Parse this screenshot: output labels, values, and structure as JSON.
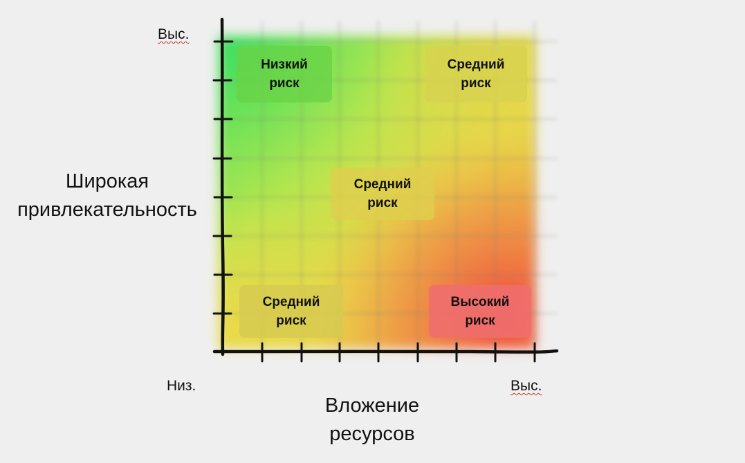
{
  "axes": {
    "y_high": "Выс.",
    "x_low": "Низ.",
    "x_high": "Выс.",
    "y_title_line1": "Широкая",
    "y_title_line2": "привлекательность",
    "x_title_line1": "Вложение",
    "x_title_line2": "ресурсов"
  },
  "quadrants": {
    "top_left": {
      "line1": "Низкий",
      "line2": "риск"
    },
    "top_right": {
      "line1": "Средний",
      "line2": "риск"
    },
    "center": {
      "line1": "Средний",
      "line2": "риск"
    },
    "bottom_left": {
      "line1": "Средний",
      "line2": "риск"
    },
    "bottom_right": {
      "line1": "Высокий",
      "line2": "риск"
    }
  },
  "colors": {
    "low_risk": "#5ee05a",
    "medium_risk": "#d9dc4a",
    "high_risk": "#f05a4a",
    "background": "#efefef",
    "axis": "#111111"
  }
}
